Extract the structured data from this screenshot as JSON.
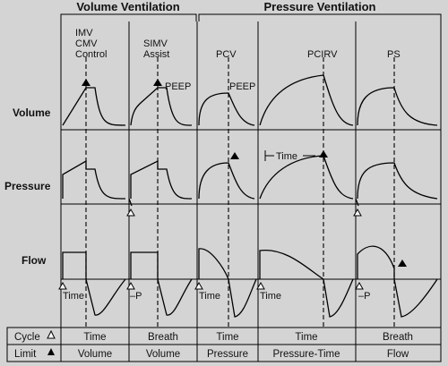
{
  "groups": {
    "volume": "Volume Ventilation",
    "pressure": "Pressure Ventilation"
  },
  "rows": {
    "volume": "Volume",
    "pressure": "Pressure",
    "flow": "Flow"
  },
  "columns": [
    {
      "mode_lines": [
        "IMV",
        "CMV",
        "Control"
      ],
      "cycle": "Time",
      "limit": "Volume"
    },
    {
      "mode_lines": [
        "SIMV",
        "Assist"
      ],
      "cycle": "Breath",
      "limit": "Volume"
    },
    {
      "mode_lines": [
        "PCV"
      ],
      "cycle": "Time",
      "limit": "Pressure"
    },
    {
      "mode_lines": [
        "PCIRV"
      ],
      "cycle": "Time",
      "limit": "Pressure-Time"
    },
    {
      "mode_lines": [
        "PS"
      ],
      "cycle": "Breath",
      "limit": "Flow"
    }
  ],
  "annotations": {
    "peep_1": "PEEP",
    "peep_2": "PEEP",
    "time_pcirv": "Time",
    "flow_trigger_1": "Time",
    "flow_trigger_2": "–P",
    "flow_trigger_3": "Time",
    "flow_trigger_4": "Time",
    "flow_trigger_5": "–P"
  },
  "legend": {
    "cycle_label": "Cycle",
    "limit_label": "Limit",
    "cycle_symbol": "open-triangle-icon",
    "limit_symbol": "filled-triangle-icon"
  }
}
